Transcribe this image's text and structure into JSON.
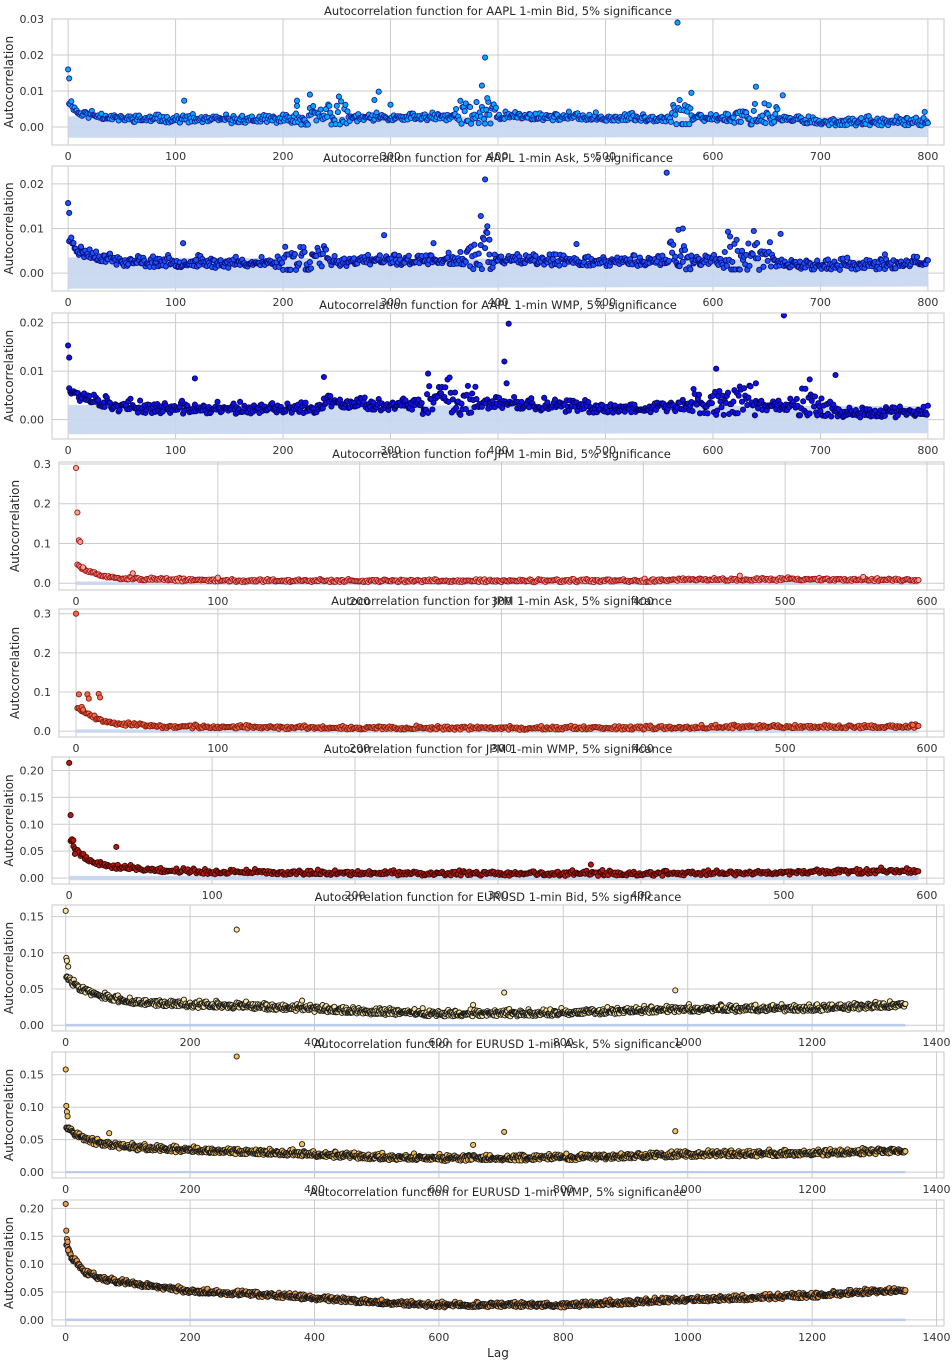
{
  "figure": {
    "xlabel": "Lag"
  },
  "chart_data": [
    {
      "type": "scatter",
      "title": "Autocorrelation function for AAPL 1-min Bid, 5% significance",
      "xlabel": "",
      "ylabel": "Autocorrelation",
      "xlim": [
        -15,
        815
      ],
      "ylim": [
        -0.005,
        0.03
      ],
      "xticks": [
        0,
        100,
        200,
        300,
        400,
        500,
        600,
        700,
        800
      ],
      "yticks": [
        0.0,
        0.01,
        0.02,
        0.03
      ],
      "ytick_decimals": 2,
      "marker_fill": "#00aaff",
      "marker_edge": "#1b1b9a",
      "band_color": "#c6d6f0",
      "significance_band": [
        0,
        0.003,
        0.0028
      ],
      "n_lags": 800,
      "curve": [
        [
          1,
          0.0068
        ],
        [
          10,
          0.0035
        ],
        [
          50,
          0.0021
        ],
        [
          150,
          0.0017
        ],
        [
          300,
          0.0022
        ],
        [
          400,
          0.0028
        ],
        [
          500,
          0.0022
        ],
        [
          600,
          0.0022
        ],
        [
          680,
          0.0018
        ],
        [
          700,
          0.0011
        ],
        [
          800,
          0.0011
        ]
      ],
      "spread": 0.0007,
      "bumps": [
        [
          210,
          260,
          0.0018
        ],
        [
          360,
          400,
          0.0022
        ],
        [
          560,
          580,
          0.0022
        ],
        [
          620,
          660,
          0.0018
        ]
      ],
      "outliers": [
        [
          0,
          0.016
        ],
        [
          1,
          0.0135
        ],
        [
          108,
          0.0073
        ],
        [
          385,
          0.0115
        ],
        [
          388,
          0.0193
        ],
        [
          390,
          0.008
        ],
        [
          567,
          0.029
        ],
        [
          580,
          0.0095
        ],
        [
          640,
          0.0112
        ],
        [
          285,
          0.0075
        ],
        [
          289,
          0.0098
        ],
        [
          213,
          0.0073
        ],
        [
          225,
          0.009
        ],
        [
          300,
          0.0062
        ],
        [
          665,
          0.0088
        ],
        [
          797,
          0.0042
        ]
      ],
      "seed": 11
    },
    {
      "type": "scatter",
      "title": "Autocorrelation function for AAPL 1-min Ask, 5% significance",
      "xlabel": "",
      "ylabel": "Autocorrelation",
      "xlim": [
        -15,
        815
      ],
      "ylim": [
        -0.004,
        0.024
      ],
      "xticks": [
        0,
        100,
        200,
        300,
        400,
        500,
        600,
        700,
        800
      ],
      "yticks": [
        0.0,
        0.01,
        0.02
      ],
      "ytick_decimals": 2,
      "marker_fill": "#1a55ff",
      "marker_edge": "#0b0b7a",
      "band_color": "#c6d6f0",
      "significance_band": [
        0,
        0.0035,
        0.003
      ],
      "n_lags": 800,
      "curve": [
        [
          1,
          0.0075
        ],
        [
          10,
          0.0045
        ],
        [
          50,
          0.0022
        ],
        [
          150,
          0.0019
        ],
        [
          300,
          0.0025
        ],
        [
          400,
          0.0026
        ],
        [
          500,
          0.0022
        ],
        [
          600,
          0.0025
        ],
        [
          680,
          0.0018
        ],
        [
          700,
          0.0014
        ],
        [
          800,
          0.0018
        ]
      ],
      "spread": 0.0008,
      "bumps": [
        [
          200,
          240,
          0.0018
        ],
        [
          370,
          395,
          0.003
        ],
        [
          560,
          580,
          0.002
        ],
        [
          610,
          660,
          0.002
        ]
      ],
      "outliers": [
        [
          0,
          0.0157
        ],
        [
          1,
          0.0135
        ],
        [
          107,
          0.0067
        ],
        [
          384,
          0.0128
        ],
        [
          388,
          0.021
        ],
        [
          390,
          0.0105
        ],
        [
          392,
          0.0075
        ],
        [
          557,
          0.0225
        ],
        [
          568,
          0.0097
        ],
        [
          572,
          0.01
        ],
        [
          294,
          0.0085
        ],
        [
          340,
          0.0067
        ],
        [
          473,
          0.0065
        ],
        [
          616,
          0.0082
        ],
        [
          663,
          0.0088
        ],
        [
          760,
          0.0042
        ]
      ],
      "seed": 23
    },
    {
      "type": "scatter",
      "title": "Autocorrelation function for AAPL 1-min WMP, 5% significance",
      "xlabel": "",
      "ylabel": "Autocorrelation",
      "xlim": [
        -15,
        815
      ],
      "ylim": [
        -0.004,
        0.022
      ],
      "xticks": [
        0,
        100,
        200,
        300,
        400,
        500,
        600,
        700,
        800
      ],
      "yticks": [
        0.0,
        0.01,
        0.02
      ],
      "ytick_decimals": 2,
      "marker_fill": "#1010ee",
      "marker_edge": "#05055e",
      "band_color": "#c6d6f0",
      "significance_band": [
        0,
        0.003,
        0.0028
      ],
      "n_lags": 800,
      "curve": [
        [
          1,
          0.0065
        ],
        [
          10,
          0.0045
        ],
        [
          50,
          0.0022
        ],
        [
          150,
          0.0018
        ],
        [
          230,
          0.0018
        ],
        [
          240,
          0.0035
        ],
        [
          300,
          0.0025
        ],
        [
          400,
          0.003
        ],
        [
          500,
          0.002
        ],
        [
          600,
          0.0026
        ],
        [
          700,
          0.0025
        ],
        [
          720,
          0.0012
        ],
        [
          800,
          0.0012
        ]
      ],
      "spread": 0.0008,
      "bumps": [
        [
          330,
          380,
          0.002
        ],
        [
          580,
          640,
          0.002
        ],
        [
          680,
          710,
          0.002
        ]
      ],
      "outliers": [
        [
          0,
          0.0153
        ],
        [
          1,
          0.0128
        ],
        [
          118,
          0.0085
        ],
        [
          406,
          0.012
        ],
        [
          410,
          0.0198
        ],
        [
          408,
          0.0075
        ],
        [
          666,
          0.0215
        ],
        [
          603,
          0.0105
        ],
        [
          335,
          0.0095
        ],
        [
          238,
          0.0088
        ],
        [
          640,
          0.0075
        ],
        [
          690,
          0.0083
        ],
        [
          714,
          0.0092
        ]
      ],
      "seed": 37
    },
    {
      "type": "scatter",
      "title": "Autocorrelation function for JPM 1-min Bid, 5% significance",
      "xlabel": "",
      "ylabel": "Autocorrelation",
      "xlim": [
        -12,
        612
      ],
      "ylim": [
        -0.017,
        0.305
      ],
      "xticks": [
        0,
        100,
        200,
        300,
        400,
        500,
        600
      ],
      "yticks": [
        0.0,
        0.1,
        0.2,
        0.3
      ],
      "ytick_decimals": 1,
      "marker_fill": "#f3a79a",
      "marker_edge": "#a61010",
      "band_color": "#c6d6f0",
      "significance_band": [
        0,
        0.0045,
        0.0045
      ],
      "n_lags": 594,
      "curve": [
        [
          1,
          0.045
        ],
        [
          6,
          0.032
        ],
        [
          15,
          0.02
        ],
        [
          30,
          0.012
        ],
        [
          60,
          0.008
        ],
        [
          100,
          0.006
        ],
        [
          200,
          0.005
        ],
        [
          300,
          0.005
        ],
        [
          400,
          0.005
        ],
        [
          440,
          0.008
        ],
        [
          500,
          0.009
        ],
        [
          594,
          0.007
        ]
      ],
      "spread": 0.0025,
      "bumps": [],
      "outliers": [
        [
          0,
          0.29
        ],
        [
          1,
          0.178
        ],
        [
          2,
          0.108
        ],
        [
          3,
          0.104
        ],
        [
          5,
          0.04
        ],
        [
          40,
          0.025
        ],
        [
          100,
          0.014
        ],
        [
          468,
          0.019
        ],
        [
          555,
          0.016
        ]
      ],
      "seed": 51
    },
    {
      "type": "scatter",
      "title": "Autocorrelation function for JPM 1-min Ask, 5% significance",
      "xlabel": "",
      "ylabel": "Autocorrelation",
      "xlim": [
        -12,
        612
      ],
      "ylim": [
        -0.015,
        0.312
      ],
      "xticks": [
        0,
        100,
        200,
        300,
        400,
        500,
        600
      ],
      "yticks": [
        0.0,
        0.1,
        0.2,
        0.3
      ],
      "ytick_decimals": 1,
      "marker_fill": "#ee6a50",
      "marker_edge": "#8a1a0a",
      "band_color": "#c6d6f0",
      "significance_band": [
        0,
        0.0045,
        0.0045
      ],
      "n_lags": 594,
      "curve": [
        [
          1,
          0.06
        ],
        [
          5,
          0.05
        ],
        [
          15,
          0.03
        ],
        [
          30,
          0.018
        ],
        [
          60,
          0.01
        ],
        [
          150,
          0.008
        ],
        [
          300,
          0.006
        ],
        [
          400,
          0.006
        ],
        [
          450,
          0.01
        ],
        [
          500,
          0.01
        ],
        [
          594,
          0.01
        ]
      ],
      "spread": 0.003,
      "bumps": [],
      "outliers": [
        [
          0,
          0.3
        ],
        [
          2,
          0.094
        ],
        [
          8,
          0.094
        ],
        [
          9,
          0.083
        ],
        [
          16,
          0.095
        ],
        [
          17,
          0.086
        ],
        [
          4,
          0.062
        ],
        [
          5,
          0.055
        ],
        [
          590,
          0.016
        ]
      ],
      "seed": 67
    },
    {
      "type": "scatter",
      "title": "Autocorrelation function for JPM 1-min WMP, 5% significance",
      "xlabel": "",
      "ylabel": "Autocorrelation",
      "xlim": [
        -12,
        612
      ],
      "ylim": [
        -0.011,
        0.225
      ],
      "xticks": [
        0,
        100,
        200,
        300,
        400,
        500,
        600
      ],
      "yticks": [
        0.0,
        0.05,
        0.1,
        0.15,
        0.2
      ],
      "ytick_decimals": 2,
      "marker_fill": "#b51a0e",
      "marker_edge": "#3a0503",
      "band_color": "#c6d6f0",
      "significance_band": [
        0,
        0.004,
        0.004
      ],
      "n_lags": 594,
      "curve": [
        [
          1,
          0.07
        ],
        [
          5,
          0.05
        ],
        [
          15,
          0.03
        ],
        [
          30,
          0.02
        ],
        [
          60,
          0.014
        ],
        [
          100,
          0.01
        ],
        [
          200,
          0.008
        ],
        [
          300,
          0.007
        ],
        [
          400,
          0.007
        ],
        [
          480,
          0.008
        ],
        [
          520,
          0.01
        ],
        [
          594,
          0.012
        ]
      ],
      "spread": 0.003,
      "bumps": [],
      "outliers": [
        [
          0,
          0.214
        ],
        [
          1,
          0.117
        ],
        [
          2,
          0.072
        ],
        [
          3,
          0.07
        ],
        [
          4,
          0.045
        ],
        [
          33,
          0.058
        ],
        [
          365,
          0.025
        ]
      ],
      "seed": 79
    },
    {
      "type": "scatter",
      "title": "Autocorrelation function for EURUSD 1-min Bid, 5% significance",
      "xlabel": "",
      "ylabel": "Autocorrelation",
      "xlim": [
        -22,
        1412
      ],
      "ylim": [
        -0.008,
        0.166
      ],
      "xticks": [
        0,
        200,
        400,
        600,
        800,
        1000,
        1200,
        1400
      ],
      "yticks": [
        0.0,
        0.05,
        0.1,
        0.15
      ],
      "ytick_decimals": 2,
      "marker_fill": "#fae6a0",
      "marker_edge": "#1a1a1a",
      "band_color": "#b8c8ea",
      "significance_band": [
        0,
        0.0018,
        0.0018
      ],
      "n_lags": 1350,
      "curve": [
        [
          1,
          0.065
        ],
        [
          20,
          0.052
        ],
        [
          50,
          0.04
        ],
        [
          100,
          0.032
        ],
        [
          200,
          0.027
        ],
        [
          300,
          0.025
        ],
        [
          400,
          0.021
        ],
        [
          500,
          0.017
        ],
        [
          600,
          0.015
        ],
        [
          700,
          0.015
        ],
        [
          800,
          0.016
        ],
        [
          1000,
          0.021
        ],
        [
          1200,
          0.022
        ],
        [
          1350,
          0.027
        ]
      ],
      "spread": 0.003,
      "bumps": [],
      "outliers": [
        [
          0,
          0.158
        ],
        [
          1,
          0.093
        ],
        [
          2,
          0.089
        ],
        [
          4,
          0.081
        ],
        [
          275,
          0.132
        ],
        [
          380,
          0.034
        ],
        [
          655,
          0.028
        ],
        [
          705,
          0.045
        ],
        [
          980,
          0.048
        ]
      ],
      "seed": 83
    },
    {
      "type": "scatter",
      "title": "Autocorrelation function for EURUSD 1-min Ask, 5% significance",
      "xlabel": "",
      "ylabel": "Autocorrelation",
      "xlim": [
        -22,
        1412
      ],
      "ylim": [
        -0.009,
        0.185
      ],
      "xticks": [
        0,
        200,
        400,
        600,
        800,
        1000,
        1200,
        1400
      ],
      "yticks": [
        0.0,
        0.05,
        0.1,
        0.15
      ],
      "ytick_decimals": 2,
      "marker_fill": "#f4be5c",
      "marker_edge": "#1a1a1a",
      "band_color": "#b8c8ea",
      "significance_band": [
        0,
        0.0018,
        0.0018
      ],
      "n_lags": 1350,
      "curve": [
        [
          1,
          0.07
        ],
        [
          20,
          0.055
        ],
        [
          50,
          0.044
        ],
        [
          100,
          0.037
        ],
        [
          200,
          0.032
        ],
        [
          300,
          0.03
        ],
        [
          400,
          0.026
        ],
        [
          500,
          0.022
        ],
        [
          600,
          0.02
        ],
        [
          700,
          0.02
        ],
        [
          800,
          0.021
        ],
        [
          1000,
          0.026
        ],
        [
          1200,
          0.028
        ],
        [
          1350,
          0.032
        ]
      ],
      "spread": 0.003,
      "bumps": [],
      "outliers": [
        [
          0,
          0.158
        ],
        [
          1,
          0.102
        ],
        [
          2,
          0.093
        ],
        [
          3,
          0.086
        ],
        [
          275,
          0.178
        ],
        [
          380,
          0.043
        ],
        [
          655,
          0.042
        ],
        [
          705,
          0.062
        ],
        [
          980,
          0.063
        ],
        [
          70,
          0.06
        ]
      ],
      "seed": 97
    },
    {
      "type": "scatter",
      "title": "Autocorrelation function for EURUSD 1-min WMP, 5% significance",
      "xlabel": "Lag",
      "ylabel": "Autocorrelation",
      "xlim": [
        -22,
        1412
      ],
      "ylim": [
        -0.011,
        0.215
      ],
      "xticks": [
        0,
        200,
        400,
        600,
        800,
        1000,
        1200,
        1400
      ],
      "yticks": [
        0.0,
        0.05,
        0.1,
        0.15,
        0.2
      ],
      "ytick_decimals": 2,
      "marker_fill": "#ee9a48",
      "marker_edge": "#1a1a1a",
      "band_color": "#b8c8ea",
      "significance_band": [
        0,
        0.0022,
        0.0022
      ],
      "n_lags": 1350,
      "curve": [
        [
          1,
          0.135
        ],
        [
          10,
          0.11
        ],
        [
          30,
          0.085
        ],
        [
          60,
          0.072
        ],
        [
          100,
          0.065
        ],
        [
          200,
          0.05
        ],
        [
          300,
          0.045
        ],
        [
          400,
          0.038
        ],
        [
          500,
          0.03
        ],
        [
          600,
          0.025
        ],
        [
          700,
          0.026
        ],
        [
          800,
          0.025
        ],
        [
          900,
          0.03
        ],
        [
          1000,
          0.035
        ],
        [
          1100,
          0.038
        ],
        [
          1200,
          0.042
        ],
        [
          1300,
          0.05
        ],
        [
          1350,
          0.052
        ]
      ],
      "spread": 0.003,
      "bumps": [],
      "outliers": [
        [
          0,
          0.208
        ],
        [
          1,
          0.16
        ],
        [
          2,
          0.145
        ],
        [
          3,
          0.14
        ],
        [
          4,
          0.125
        ]
      ],
      "seed": 113
    }
  ]
}
